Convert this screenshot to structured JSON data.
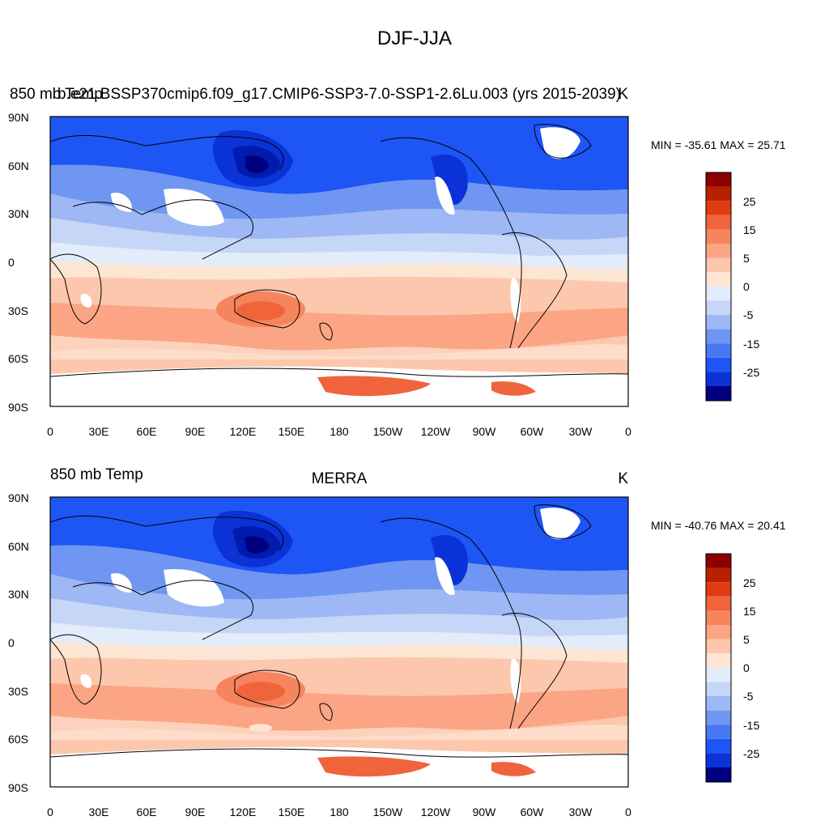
{
  "figure": {
    "title": "DJF-JJA"
  },
  "colors": {
    "palette": [
      "#00007f",
      "#001bad",
      "#0a32d6",
      "#1e55f5",
      "#4778f2",
      "#6e96f2",
      "#9db8f5",
      "#c5d6f7",
      "#e2ecfa",
      "#fde5d4",
      "#fcc7ad",
      "#fba584",
      "#f6855e",
      "#f0643c",
      "#e03c12",
      "#b82000",
      "#8c0000"
    ],
    "missing": "#ffffff",
    "coastline": "#000000"
  },
  "colorbar": {
    "labels": [
      "25",
      "15",
      "5",
      "0",
      "-5",
      "-15",
      "-25"
    ]
  },
  "x_axis": {
    "ticks": [
      "0",
      "30E",
      "60E",
      "90E",
      "120E",
      "150E",
      "180",
      "150W",
      "120W",
      "90W",
      "60W",
      "30W",
      "0"
    ]
  },
  "y_axis": {
    "ticks": [
      "90N",
      "60N",
      "30N",
      "0",
      "30S",
      "60S",
      "90S"
    ]
  },
  "panels": [
    {
      "left_title": "850 mb Temp",
      "center_title": "b.e21.BSSP370cmip6.f09_g17.CMIP6-SSP3-7.0-SSP1-2.6Lu.003 (yrs 2015-2039)",
      "units": "K",
      "stats": "MIN = -35.61 MAX =  25.71",
      "min": -35.61,
      "max": 25.71
    },
    {
      "left_title": "850 mb Temp",
      "center_title": "MERRA",
      "units": "K",
      "stats": "MIN = -40.76 MAX =  20.41",
      "min": -40.76,
      "max": 20.41
    }
  ]
}
